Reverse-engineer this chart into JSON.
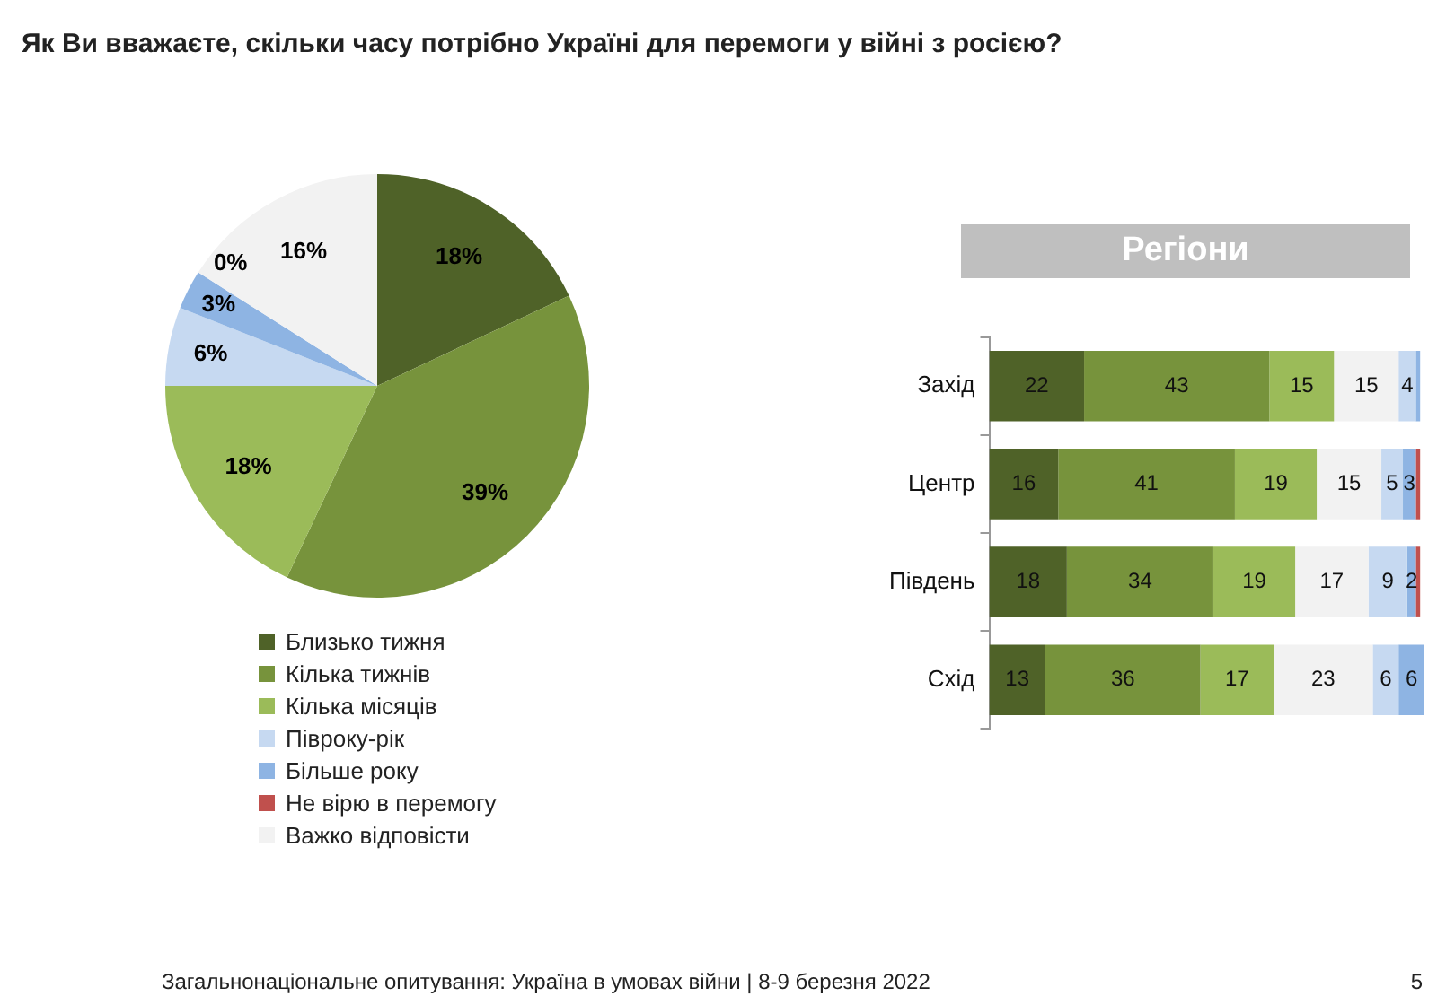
{
  "chart_data": [
    {
      "type": "pie",
      "title": "Як Ви вважаєте, скільки часу потрібно Україні для перемоги у війні з росією?",
      "categories": [
        "Близько тижня",
        "Кілька тижнів",
        "Кілька місяців",
        "Півроку-рік",
        "Більше року",
        "Не вірю в перемогу",
        "Важко відповісти"
      ],
      "values": [
        18,
        39,
        18,
        6,
        3,
        0,
        16
      ],
      "colors": [
        "#4f6228",
        "#77933c",
        "#9bbb59",
        "#c6d9f1",
        "#8eb4e3",
        "#c0504d",
        "#f2f2f2"
      ],
      "value_labels": [
        "18%",
        "39%",
        "18%",
        "6%",
        "3%",
        "0%",
        "16%"
      ],
      "legend": "bottom",
      "annotations": [
        "Загальнонаціональне опитування: Україна в умовах війни | 8-9 березня 2022",
        "5"
      ]
    },
    {
      "type": "bar",
      "title": "Регіони",
      "orientation": "horizontal",
      "stacked": true,
      "categories": [
        "Захід",
        "Центр",
        "Південь",
        "Схід"
      ],
      "xlim": [
        0,
        101
      ],
      "tick_labels": "y",
      "legend": false,
      "series": [
        {
          "color": "#4f6228",
          "values": [
            22,
            16,
            18,
            13
          ],
          "value_labels": [
            "22",
            "16",
            "18",
            "13"
          ]
        },
        {
          "color": "#77933c",
          "values": [
            43,
            41,
            34,
            36
          ],
          "value_labels": [
            "43",
            "41",
            "34",
            "36"
          ]
        },
        {
          "color": "#9bbb59",
          "values": [
            15,
            19,
            19,
            17
          ],
          "value_labels": [
            "15",
            "19",
            "19",
            "17"
          ]
        },
        {
          "color": "#f2f2f2",
          "values": [
            15,
            15,
            17,
            23
          ],
          "value_labels": [
            "15",
            "15",
            "17",
            "23"
          ]
        },
        {
          "color": "#c6d9f1",
          "values": [
            4,
            5,
            9,
            6
          ],
          "value_labels": [
            "4",
            "5",
            "9",
            "6"
          ]
        },
        {
          "color": "#8eb4e3",
          "values": [
            1,
            3,
            2,
            6
          ],
          "value_labels": [
            null,
            "3",
            "2",
            "6"
          ]
        },
        {
          "color": "#c0504d",
          "values": [
            0,
            1,
            1,
            0
          ],
          "value_labels": [
            null,
            null,
            null,
            null
          ]
        }
      ]
    }
  ]
}
